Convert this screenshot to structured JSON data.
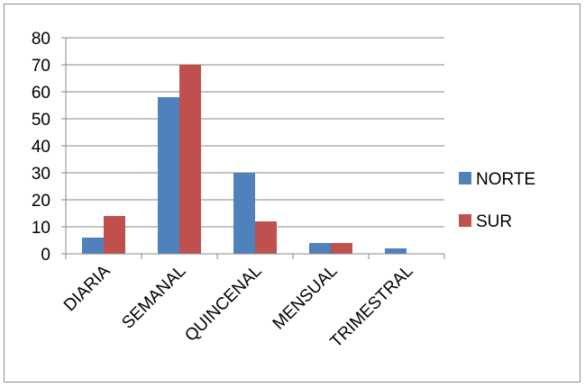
{
  "chart_data": {
    "type": "bar",
    "title": "",
    "xlabel": "",
    "ylabel": "",
    "categories": [
      "DIARIA",
      "SEMANAL",
      "QUINCENAL",
      "MENSUAL",
      "TRIMESTRAL"
    ],
    "series": [
      {
        "name": "NORTE",
        "color": "#4f81bd",
        "values": [
          6,
          58,
          30,
          4,
          2
        ]
      },
      {
        "name": "SUR",
        "color": "#c0504d",
        "values": [
          14,
          70,
          12,
          4,
          0
        ]
      }
    ],
    "ylim": [
      0,
      80
    ],
    "yticks": [
      0,
      10,
      20,
      30,
      40,
      50,
      60,
      70,
      80
    ],
    "grid": true,
    "legend_position": "right"
  }
}
